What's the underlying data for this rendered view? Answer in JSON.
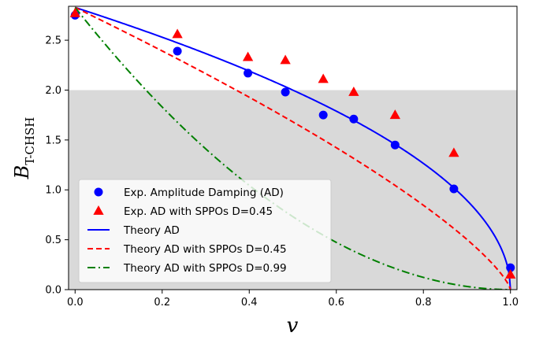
{
  "chart_data": {
    "type": "line",
    "xlabel": "v",
    "ylabel_main": "B",
    "ylabel_sub": "T-CHSH",
    "xlim": [
      -0.015,
      1.015
    ],
    "ylim": [
      0.0,
      2.84
    ],
    "xticks": [
      "0.0",
      "0.2",
      "0.4",
      "0.6",
      "0.8",
      "1.0"
    ],
    "yticks": [
      "0.0",
      "0.5",
      "1.0",
      "1.5",
      "2.0",
      "2.5"
    ],
    "shaded_region": {
      "y_from": 0.0,
      "y_to": 2.0,
      "color": "#d9d9d9"
    },
    "grid": false,
    "legend_position": "lower-left",
    "series": [
      {
        "name": "Exp. Amplitude Damping (AD)",
        "kind": "scatter",
        "marker": "circle",
        "color": "#0000ff",
        "points": [
          [
            0.0,
            2.75
          ],
          [
            0.235,
            2.39
          ],
          [
            0.397,
            2.17
          ],
          [
            0.483,
            1.98
          ],
          [
            0.57,
            1.75
          ],
          [
            0.64,
            1.71
          ],
          [
            0.735,
            1.45
          ],
          [
            0.87,
            1.01
          ],
          [
            1.0,
            0.22
          ]
        ]
      },
      {
        "name": "Exp. AD with SPPOs D=0.45",
        "kind": "scatter",
        "marker": "triangle",
        "color": "#ff0000",
        "points": [
          [
            0.0,
            2.77
          ],
          [
            0.235,
            2.56
          ],
          [
            0.397,
            2.33
          ],
          [
            0.483,
            2.3
          ],
          [
            0.57,
            2.11
          ],
          [
            0.64,
            1.98
          ],
          [
            0.735,
            1.75
          ],
          [
            0.87,
            1.37
          ],
          [
            1.0,
            0.15
          ]
        ]
      },
      {
        "name": "Theory AD",
        "kind": "line",
        "style": "solid",
        "color": "#0000ff",
        "shape_exponent": 0.5
      },
      {
        "name": "Theory AD with SPPOs D=0.45",
        "kind": "line",
        "style": "dashed",
        "color": "#ff0000",
        "shape_exponent": 0.75
      },
      {
        "name": "Theory AD with SPPOs D=0.99",
        "kind": "line",
        "style": "dashdot",
        "color": "#008000",
        "shape_exponent": 1.95
      }
    ]
  }
}
